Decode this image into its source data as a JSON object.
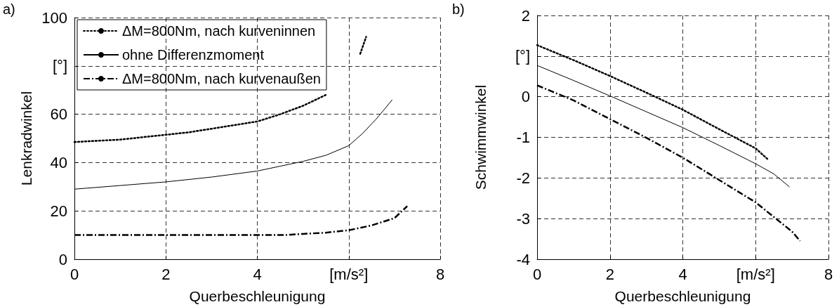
{
  "chart_data": [
    {
      "type": "line",
      "title": "a)",
      "xlabel": "Querbeschleunigung",
      "ylabel": "Lenkradwinkel",
      "xlim": [
        0,
        8
      ],
      "xticks": [
        0,
        2,
        4,
        {
          "value": 6,
          "label": "[m/s²]"
        },
        8
      ],
      "ylim": [
        0,
        100
      ],
      "yticks": [
        0,
        20,
        40,
        60,
        {
          "value": 80,
          "label": "[°]"
        },
        100
      ],
      "grid": true,
      "legend": "top left",
      "marker": "none",
      "series": [
        {
          "name": "ΔM=800Nm, nach kurveninnen",
          "color": "#000000",
          "line_style": "dotted",
          "x": [
            0,
            0.5,
            1,
            1.5,
            2,
            2.5,
            3,
            3.5,
            4,
            4.5,
            5,
            5.5,
            5.8,
            6.25,
            6.38
          ],
          "values": [
            48.5,
            49,
            49.5,
            50.5,
            51.5,
            52.5,
            54,
            55.5,
            57,
            60,
            63.5,
            68,
            null,
            85,
            92
          ]
        },
        {
          "name": "ohne Differenzmoment",
          "color": "#000000",
          "line_style": "solid",
          "x": [
            0,
            1,
            2,
            3,
            4,
            4.5,
            5,
            5.5,
            6,
            6.3,
            6.6,
            6.8,
            6.95
          ],
          "values": [
            29,
            30.5,
            32,
            34,
            36.5,
            38.5,
            40.5,
            43,
            47,
            52,
            58,
            62.5,
            66
          ]
        },
        {
          "name": "ΔM=800Nm, nach kurvenaußen",
          "color": "#000000",
          "line_style": "dashdot",
          "x": [
            0,
            1,
            2,
            3,
            4,
            4.6,
            5,
            5.5,
            6,
            6.5,
            7,
            7.28
          ],
          "values": [
            10,
            10,
            10,
            10,
            10,
            10,
            10.5,
            11,
            12,
            14,
            17,
            22
          ]
        }
      ]
    },
    {
      "type": "line",
      "title": "b)",
      "xlabel": "Querbeschleunigung",
      "ylabel": "Schwimmwinkel",
      "xlim": [
        0,
        8
      ],
      "xticks": [
        0,
        2,
        4,
        {
          "value": 6,
          "label": "[m/s²]"
        },
        8
      ],
      "ylim": [
        -4,
        2
      ],
      "yticks": [
        -4,
        -3,
        -2,
        -1,
        0,
        {
          "value": 1,
          "label": "[°]"
        },
        2
      ],
      "grid": true,
      "marker": "none",
      "series": [
        {
          "color": "#000000",
          "line_style": "dotted",
          "x": [
            0,
            1,
            2,
            3,
            4,
            5,
            6,
            6.32
          ],
          "values": [
            1.27,
            0.9,
            0.51,
            0.1,
            -0.32,
            -0.8,
            -1.27,
            -1.53
          ]
        },
        {
          "color": "#000000",
          "line_style": "solid",
          "x": [
            0,
            1,
            2,
            3,
            4,
            5,
            6,
            6.5,
            6.93
          ],
          "values": [
            0.77,
            0.4,
            0.02,
            -0.37,
            -0.76,
            -1.2,
            -1.65,
            -1.9,
            -2.22
          ]
        },
        {
          "color": "#000000",
          "line_style": "dashdot",
          "x": [
            0,
            1,
            2,
            3,
            4,
            5,
            6,
            7,
            7.22
          ],
          "values": [
            0.28,
            -0.09,
            -0.55,
            -1.01,
            -1.5,
            -2.05,
            -2.6,
            -3.32,
            -3.55
          ]
        }
      ]
    }
  ]
}
